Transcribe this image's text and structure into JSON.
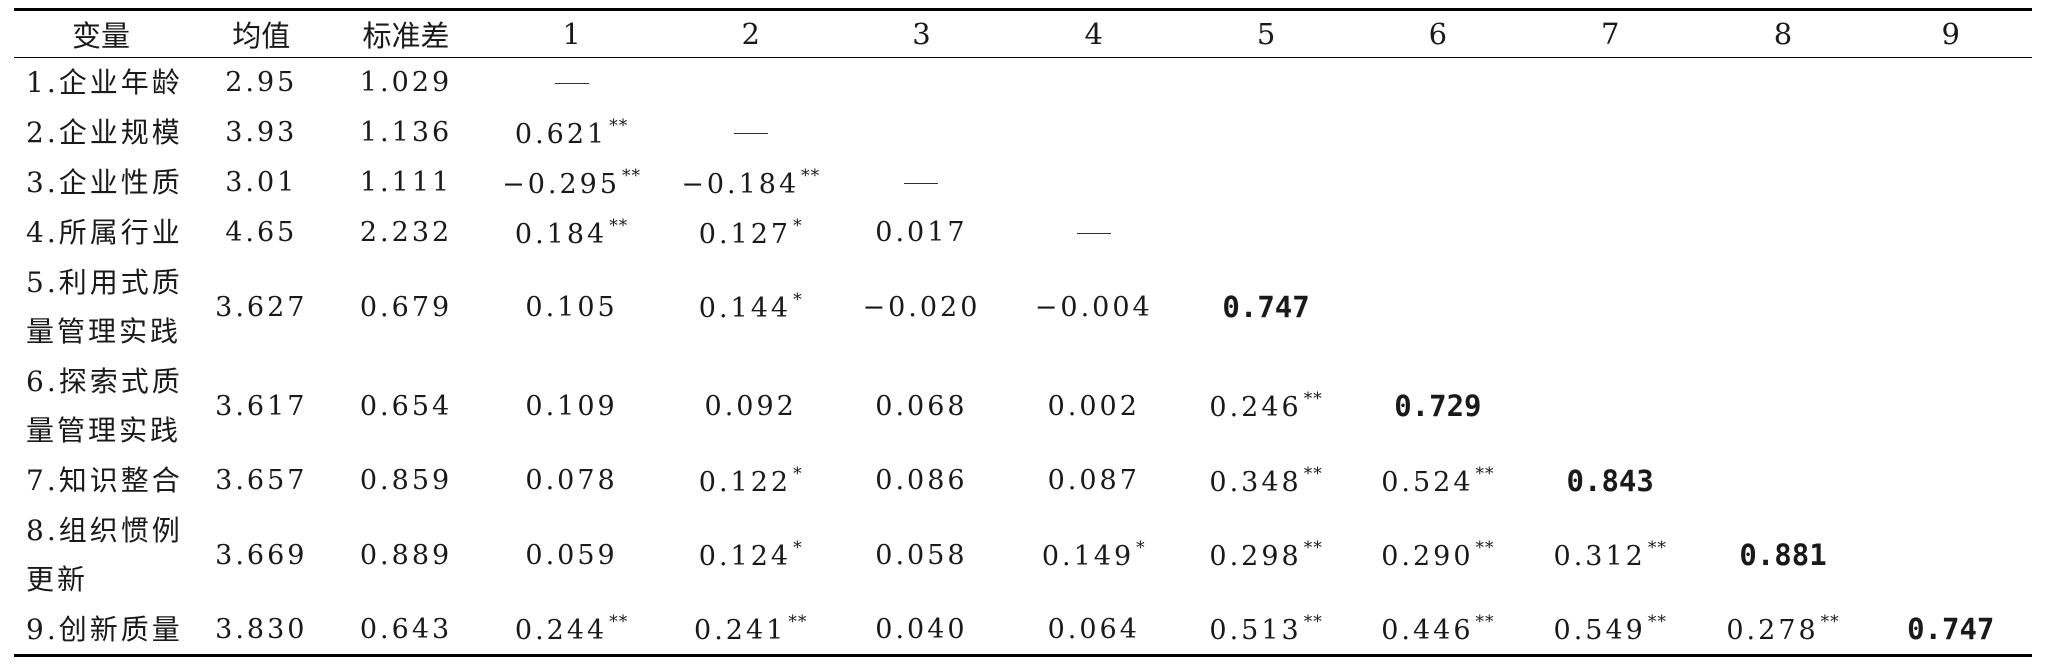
{
  "headers": [
    "变量",
    "均值",
    "标准差",
    "1",
    "2",
    "3",
    "4",
    "5",
    "6",
    "7",
    "8",
    "9"
  ],
  "rows": [
    {
      "label": "1.企业年龄",
      "mean": "2.95",
      "sd": "1.029",
      "cells": [
        {
          "v": "—",
          "dash": true
        }
      ]
    },
    {
      "label": "2.企业规模",
      "mean": "3.93",
      "sd": "1.136",
      "cells": [
        {
          "v": "0.621",
          "sig": "**"
        },
        {
          "v": "—",
          "dash": true
        }
      ]
    },
    {
      "label": "3.企业性质",
      "mean": "3.01",
      "sd": "1.111",
      "cells": [
        {
          "v": "−0.295",
          "sig": "**"
        },
        {
          "v": "−0.184",
          "sig": "**"
        },
        {
          "v": "—",
          "dash": true
        }
      ]
    },
    {
      "label": "4.所属行业",
      "mean": "4.65",
      "sd": "2.232",
      "cells": [
        {
          "v": "0.184",
          "sig": "**"
        },
        {
          "v": "0.127",
          "sig": "*"
        },
        {
          "v": "0.017"
        },
        {
          "v": "—",
          "dash": true
        }
      ]
    },
    {
      "label": "5.利用式质量管理实践",
      "mean": "3.627",
      "sd": "0.679",
      "two_line": true,
      "cells": [
        {
          "v": "0.105"
        },
        {
          "v": "0.144",
          "sig": "*"
        },
        {
          "v": "−0.020"
        },
        {
          "v": "−0.004"
        },
        {
          "v": "0.747",
          "bold": true
        }
      ]
    },
    {
      "label": "6.探索式质量管理实践",
      "mean": "3.617",
      "sd": "0.654",
      "two_line": true,
      "cells": [
        {
          "v": "0.109"
        },
        {
          "v": "0.092"
        },
        {
          "v": "0.068"
        },
        {
          "v": "0.002"
        },
        {
          "v": "0.246",
          "sig": "**"
        },
        {
          "v": "0.729",
          "bold": true
        }
      ]
    },
    {
      "label": "7.知识整合",
      "mean": "3.657",
      "sd": "0.859",
      "cells": [
        {
          "v": "0.078"
        },
        {
          "v": "0.122",
          "sig": "*"
        },
        {
          "v": "0.086"
        },
        {
          "v": "0.087"
        },
        {
          "v": "0.348",
          "sig": "**"
        },
        {
          "v": "0.524",
          "sig": "**"
        },
        {
          "v": "0.843",
          "bold": true
        }
      ]
    },
    {
      "label": "8.组织惯例更新",
      "mean": "3.669",
      "sd": "0.889",
      "two_line": true,
      "cells": [
        {
          "v": "0.059"
        },
        {
          "v": "0.124",
          "sig": "*"
        },
        {
          "v": "0.058"
        },
        {
          "v": "0.149",
          "sig": "*"
        },
        {
          "v": "0.298",
          "sig": "**"
        },
        {
          "v": "0.290",
          "sig": "**"
        },
        {
          "v": "0.312",
          "sig": "**"
        },
        {
          "v": "0.881",
          "bold": true
        }
      ]
    },
    {
      "label": "9.创新质量",
      "mean": "3.830",
      "sd": "0.643",
      "cells": [
        {
          "v": "0.244",
          "sig": "**"
        },
        {
          "v": "0.241",
          "sig": "**"
        },
        {
          "v": "0.040"
        },
        {
          "v": "0.064"
        },
        {
          "v": "0.513",
          "sig": "**"
        },
        {
          "v": "0.446",
          "sig": "**"
        },
        {
          "v": "0.549",
          "sig": "**"
        },
        {
          "v": "0.278",
          "sig": "**"
        },
        {
          "v": "0.747",
          "bold": true
        }
      ]
    }
  ]
}
